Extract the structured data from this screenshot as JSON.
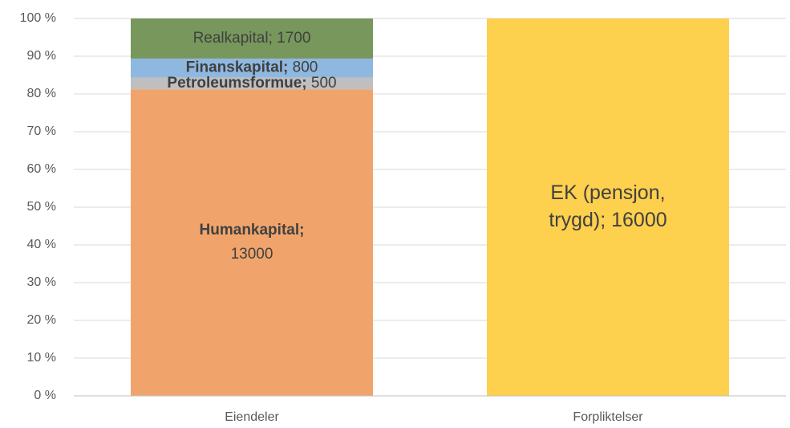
{
  "chart_data": {
    "type": "stacked_bar",
    "stack": "percent",
    "categories": [
      "Eiendeler",
      "Forpliktelser"
    ],
    "series": [
      {
        "name": "Humankapital",
        "color": "#f0a46c",
        "values": [
          13000,
          null
        ],
        "value_labels": [
          "Humankapital; 13000",
          null
        ],
        "bold_name": true
      },
      {
        "name": "Petroleumsformue",
        "color": "#bfbfbf",
        "values": [
          500,
          null
        ],
        "value_labels": [
          "Petroleumsformue; 500",
          null
        ],
        "bold_name": true
      },
      {
        "name": "Finanskapital",
        "color": "#8fb8e0",
        "values": [
          800,
          null
        ],
        "value_labels": [
          "Finanskapital; 800",
          null
        ],
        "bold_name": true
      },
      {
        "name": "Realkapital",
        "color": "#77975c",
        "values": [
          1700,
          null
        ],
        "value_labels": [
          "Realkapital; 1700",
          null
        ],
        "bold_name": false
      },
      {
        "name": "EK (pensjon, trygd)",
        "color": "#fdd04e",
        "values": [
          null,
          16000
        ],
        "value_labels": [
          null,
          "EK (pensjon, trygd); 16000"
        ],
        "bold_name": false
      }
    ],
    "ylim": [
      0,
      100
    ],
    "yticks": [
      {
        "value": 0,
        "label": "0 %"
      },
      {
        "value": 10,
        "label": "10 %"
      },
      {
        "value": 20,
        "label": "20 %"
      },
      {
        "value": 30,
        "label": "30 %"
      },
      {
        "value": 40,
        "label": "40 %"
      },
      {
        "value": 50,
        "label": "50 %"
      },
      {
        "value": 60,
        "label": "60 %"
      },
      {
        "value": 70,
        "label": "70 %"
      },
      {
        "value": 80,
        "label": "80 %"
      },
      {
        "value": 90,
        "label": "90 %"
      },
      {
        "value": 100,
        "label": "100 %"
      }
    ],
    "grid": true
  }
}
